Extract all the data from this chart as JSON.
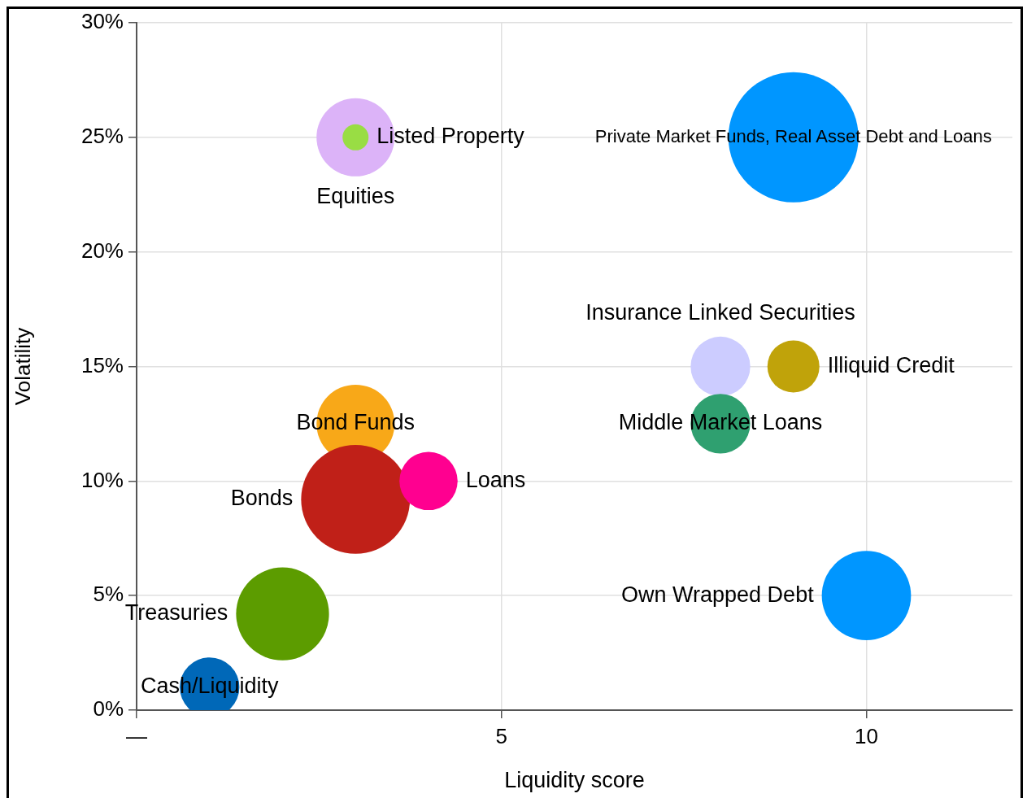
{
  "chart_data": {
    "type": "bubble",
    "xlabel": "Liquidity score",
    "ylabel": "Volatility",
    "xlim": [
      0,
      12
    ],
    "xticks": [
      {
        "value": 0,
        "label": "—"
      },
      5,
      10
    ],
    "ylim": [
      0,
      30
    ],
    "yticks": [
      {
        "value": 0,
        "label": "0%"
      },
      {
        "value": 5,
        "label": "5%"
      },
      {
        "value": 10,
        "label": "10%"
      },
      {
        "value": 15,
        "label": "15%"
      },
      {
        "value": 20,
        "label": "20%"
      },
      {
        "value": 25,
        "label": "25%"
      },
      {
        "value": 30,
        "label": "30%"
      }
    ],
    "grid": true,
    "legend": false,
    "series": [
      {
        "name": "Equities",
        "color": "#dcb3f8",
        "x": [
          3
        ],
        "values": [
          25
        ],
        "sizes": [
          0.36
        ]
      },
      {
        "name": "Listed Property",
        "color": "#99dd44",
        "x": [
          3
        ],
        "values": [
          25
        ],
        "sizes": [
          0.04
        ]
      },
      {
        "name": "Private Market Funds, Real Asset Debt and Loans",
        "color": "#0096ff",
        "x": [
          9
        ],
        "values": [
          25
        ],
        "sizes": [
          1
        ]
      },
      {
        "name": "Insurance Linked Securities",
        "color": "#ccccff",
        "x": [
          8
        ],
        "values": [
          15
        ],
        "sizes": [
          0.21
        ]
      },
      {
        "name": "Illiquid Credit",
        "color": "#c0a30a",
        "x": [
          9
        ],
        "values": [
          15
        ],
        "sizes": [
          0.16
        ]
      },
      {
        "name": "Middle Market Loans",
        "color": "#2fa070",
        "x": [
          8
        ],
        "values": [
          12.5
        ],
        "sizes": [
          0.21
        ]
      },
      {
        "name": "Bond Funds",
        "color": "#f8a818",
        "x": [
          3
        ],
        "values": [
          12.5
        ],
        "sizes": [
          0.36
        ]
      },
      {
        "name": "Bonds",
        "color": "#c02018",
        "x": [
          3
        ],
        "values": [
          9.2
        ],
        "sizes": [
          0.7
        ]
      },
      {
        "name": "Loans",
        "color": "#ff0090",
        "x": [
          4
        ],
        "values": [
          10
        ],
        "sizes": [
          0.2
        ]
      },
      {
        "name": "Own Wrapped Debt",
        "color": "#0096ff",
        "x": [
          10
        ],
        "values": [
          5
        ],
        "sizes": [
          0.47
        ]
      },
      {
        "name": "Treasuries",
        "color": "#5c9c00",
        "x": [
          2
        ],
        "values": [
          4.2
        ],
        "sizes": [
          0.51
        ]
      },
      {
        "name": "Cash/Liquidity",
        "color": "#0068b8",
        "x": [
          1
        ],
        "values": [
          1
        ],
        "sizes": [
          0.21
        ]
      }
    ]
  }
}
